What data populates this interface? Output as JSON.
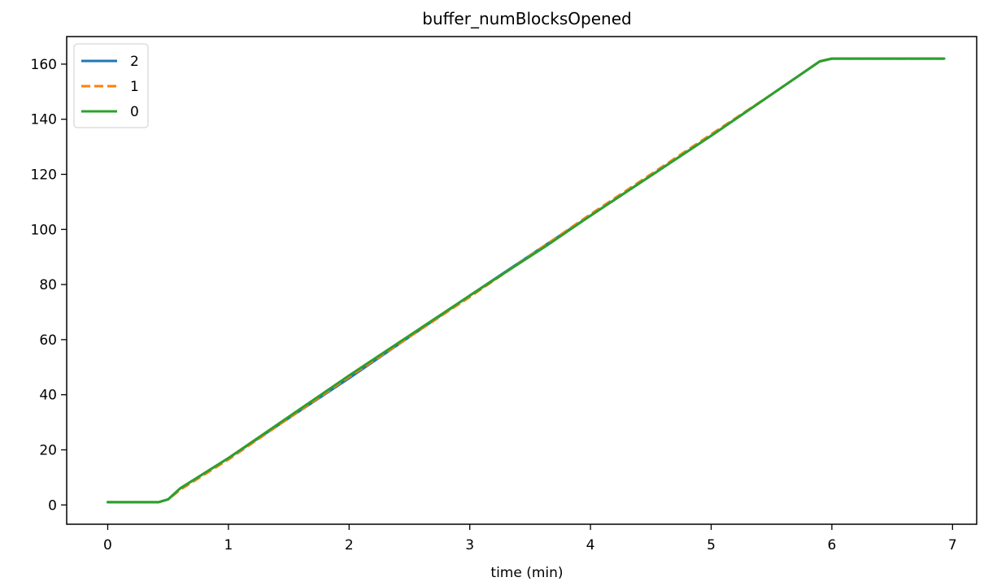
{
  "chart_data": {
    "type": "line",
    "title": "buffer_numBlocksOpened",
    "xlabel": "time (min)",
    "ylabel": "",
    "xlim": [
      -0.34,
      7.2
    ],
    "ylim": [
      -7,
      170
    ],
    "xticks": [
      0,
      1,
      2,
      3,
      4,
      5,
      6,
      7
    ],
    "yticks": [
      0,
      20,
      40,
      60,
      80,
      100,
      120,
      140,
      160
    ],
    "grid": false,
    "legend_position": "upper-left",
    "series": [
      {
        "name": "2",
        "color": "#1f77b4",
        "style": "solid",
        "x": [
          0,
          0.42,
          0.5,
          0.6,
          1.0,
          2.0,
          3.0,
          3.65,
          4.0,
          5.0,
          5.5,
          5.9,
          6.0,
          6.93
        ],
        "y": [
          1,
          1,
          2,
          6,
          17,
          46,
          76,
          95,
          105,
          134,
          149,
          161,
          162,
          162
        ]
      },
      {
        "name": "1",
        "color": "#ff7f0e",
        "style": "dashed",
        "x": [
          0,
          0.42,
          0.5,
          0.6,
          1.0,
          2.0,
          3.0,
          3.65,
          4.0,
          5.0,
          5.5,
          5.9,
          6.0,
          6.93
        ],
        "y": [
          1,
          1,
          2,
          5.5,
          16.5,
          46.5,
          75.5,
          95,
          105.5,
          134.5,
          149,
          161,
          162,
          162
        ]
      },
      {
        "name": "0",
        "color": "#2ca02c",
        "style": "solid",
        "x": [
          0,
          0.42,
          0.5,
          0.6,
          1.0,
          2.0,
          3.0,
          3.65,
          4.0,
          5.0,
          5.5,
          5.9,
          6.0,
          6.93
        ],
        "y": [
          1,
          1,
          2,
          6,
          17,
          47,
          76,
          94.5,
          105,
          134,
          149,
          161,
          162,
          162
        ]
      }
    ]
  }
}
